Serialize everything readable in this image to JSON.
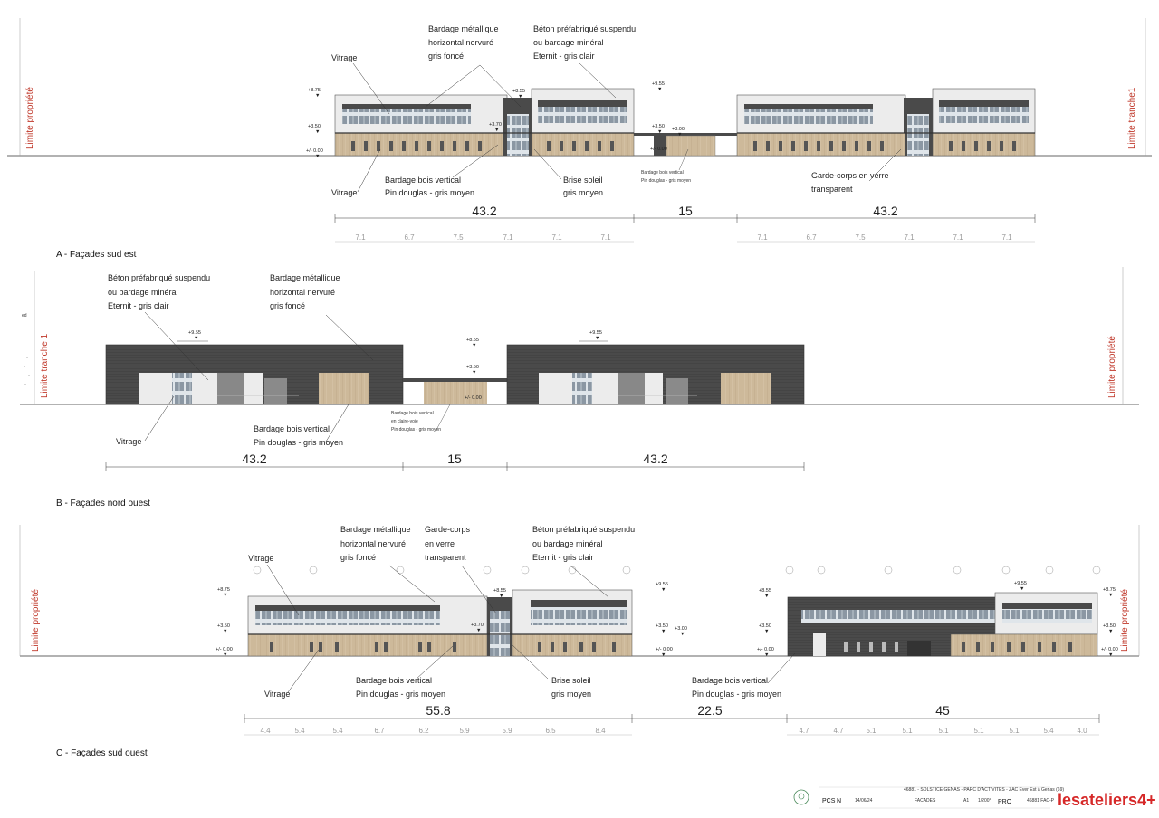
{
  "sections": {
    "a": {
      "title": "A - Façades sud est",
      "left_limit": "Limite propriété",
      "right_limit": "Limite tranche1",
      "labels": {
        "vitrage_top": "Vitrage",
        "bardage_metal": [
          "Bardage métallique",
          "horizontal nervuré",
          "gris foncé"
        ],
        "beton": [
          "Béton préfabriqué suspendu",
          "ou bardage minéral",
          "Eternit - gris clair"
        ],
        "vitrage_bottom": "Vitrage",
        "bardage_bois": [
          "Bardage bois vertical",
          "Pin douglas - gris moyen"
        ],
        "brise_soleil": [
          "Brise soleil",
          "gris moyen"
        ],
        "bardage_bois_small": [
          "Bardage bois vertical",
          "Pin douglas - gris moyen"
        ],
        "garde_corps": [
          "Garde-corps en verre",
          "transparent"
        ]
      },
      "levels": [
        "+8.75",
        "+3.50",
        "+/- 0.00",
        "+8.55",
        "+3.70",
        "+9.55",
        "+3.50",
        "+3.00",
        "+/- 0.00"
      ],
      "dims_main": [
        "43.2",
        "15",
        "43.2"
      ],
      "dims_sub_left": [
        "7.1",
        "6.7",
        "7.5",
        "7.1",
        "7.1",
        "7.1"
      ],
      "dims_sub_right": [
        "7.1",
        "6.7",
        "7.5",
        "7.1",
        "7.1",
        "7.1"
      ]
    },
    "b": {
      "title": "B - Façades nord ouest",
      "left_limit": "Limite tranche 1",
      "right_limit": "Limite propriété",
      "left_fragment": "ed",
      "labels": {
        "beton": [
          "Béton préfabriqué suspendu",
          "ou bardage minéral",
          "Eternit - gris clair"
        ],
        "bardage_metal": [
          "Bardage métallique",
          "horizontal nervuré",
          "gris foncé"
        ],
        "vitrage": "Vitrage",
        "bardage_bois": [
          "Bardage bois vertical",
          "Pin douglas - gris moyen"
        ],
        "bardage_claire": [
          "Bardage bois vertical",
          "en claire-voie",
          "Pin douglas - gris moyen"
        ]
      },
      "levels": [
        "+9.55",
        "+8.55",
        "+3.50",
        "+/- 0.00",
        "+9.55"
      ],
      "dims_main": [
        "43.2",
        "15",
        "43.2"
      ]
    },
    "c": {
      "title": "C - Façades sud ouest",
      "left_limit": "Limite propriété",
      "right_limit": "Limite propriété",
      "labels": {
        "vitrage_top": "Vitrage",
        "bardage_metal": [
          "Bardage métallique",
          "horizontal nervuré",
          "gris foncé"
        ],
        "garde_corps": [
          "Garde-corps",
          "en verre",
          "transparent"
        ],
        "beton": [
          "Béton préfabriqué suspendu",
          "ou bardage minéral",
          "Eternit - gris clair"
        ],
        "vitrage_bottom": "Vitrage",
        "bardage_bois": [
          "Bardage bois vertical",
          "Pin douglas - gris moyen"
        ],
        "brise_soleil": [
          "Brise soleil",
          "gris moyen"
        ],
        "bardage_bois_right": [
          "Bardage bois vertical",
          "Pin douglas - gris moyen"
        ]
      },
      "levels": [
        "+8.75",
        "+3.50",
        "+/- 0.00",
        "+8.55",
        "+3.70",
        "+9.55",
        "+3.50",
        "+3.00",
        "+/- 0.00",
        "+8.55",
        "+3.50",
        "+/- 0.00",
        "+9.55",
        "+8.75",
        "+3.50",
        "+/- 0.00"
      ],
      "dims_main": [
        "55.8",
        "22.5",
        "45"
      ],
      "dims_sub_left": [
        "4.4",
        "5.4",
        "5.4",
        "6.7",
        "6.2",
        "5.9",
        "5.9",
        "6.5",
        "8.4"
      ],
      "dims_sub_right": [
        "4.7",
        "4.7",
        "5.1",
        "5.1",
        "5.1",
        "5.1",
        "5.1",
        "5.4",
        "4.0"
      ]
    }
  },
  "title_block": {
    "project": "46881 - SOLSTICE GENAS - PARC D'ACTIVITES - ZAC Ever Est à Genas (69)",
    "phase_code": "PCS",
    "index": "N",
    "date": "14/06/24",
    "sheet_title": "FACADES",
    "format": "A1",
    "scale": "1/200°",
    "phase": "PRO",
    "ref": "46881 FAC-P",
    "logo": "lesateliers4+"
  },
  "colors": {
    "wood": "#cdb99a",
    "dark_cladding": "#4a4a4a",
    "light_panel": "#ececec",
    "window": "#8e9aa6",
    "limit_red": "#c0392b"
  }
}
